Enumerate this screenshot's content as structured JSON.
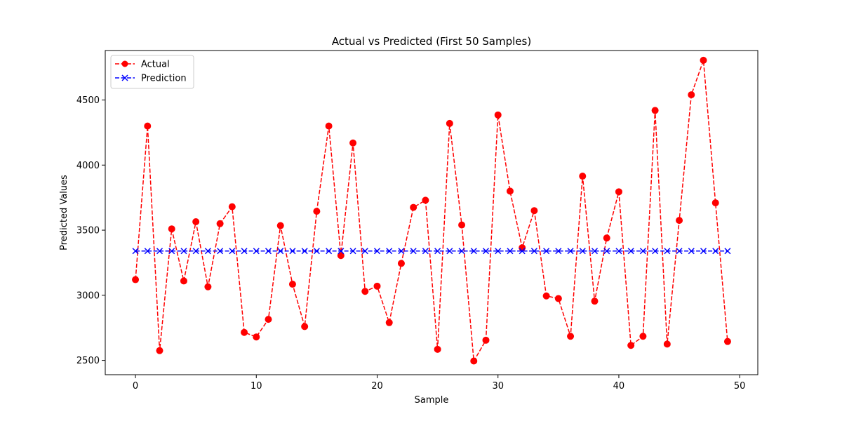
{
  "chart_data": {
    "type": "line",
    "title": "Actual vs Predicted (First 50 Samples)",
    "xlabel": "Sample",
    "ylabel": "Predicted Values",
    "xlim": [
      -2.5,
      51.5
    ],
    "ylim": [
      2390,
      4880
    ],
    "xticks": [
      0,
      10,
      20,
      30,
      40,
      50
    ],
    "xtick_labels": [
      "0",
      "10",
      "20",
      "30",
      "40",
      "50"
    ],
    "yticks": [
      2500,
      3000,
      3500,
      4000,
      4500
    ],
    "ytick_labels": [
      "2500",
      "3000",
      "3500",
      "4000",
      "4500"
    ],
    "grid": false,
    "legend_position": "top-left",
    "x": [
      0,
      1,
      2,
      3,
      4,
      5,
      6,
      7,
      8,
      9,
      10,
      11,
      12,
      13,
      14,
      15,
      16,
      17,
      18,
      19,
      20,
      21,
      22,
      23,
      24,
      25,
      26,
      27,
      28,
      29,
      30,
      31,
      32,
      33,
      34,
      35,
      36,
      37,
      38,
      39,
      40,
      41,
      42,
      43,
      44,
      45,
      46,
      47,
      48,
      49
    ],
    "series": [
      {
        "name": "Actual",
        "color": "#ff0000",
        "marker": "circle",
        "values": [
          3120,
          4300,
          2575,
          3510,
          3110,
          3565,
          3065,
          3550,
          3680,
          2715,
          2680,
          2815,
          3535,
          3085,
          2760,
          3645,
          4300,
          3305,
          4170,
          3030,
          3070,
          2790,
          3245,
          3675,
          3730,
          2585,
          4320,
          3540,
          2495,
          2655,
          4385,
          3800,
          3365,
          3650,
          2995,
          2975,
          2685,
          3915,
          2955,
          3440,
          3795,
          2615,
          2685,
          4420,
          2625,
          3575,
          4540,
          4805,
          3710,
          2645
        ]
      },
      {
        "name": "Prediction",
        "color": "#0000ff",
        "marker": "x",
        "values": [
          3340,
          3340,
          3340,
          3340,
          3340,
          3340,
          3340,
          3340,
          3340,
          3340,
          3340,
          3340,
          3340,
          3340,
          3340,
          3340,
          3340,
          3340,
          3340,
          3340,
          3340,
          3340,
          3340,
          3340,
          3340,
          3340,
          3340,
          3340,
          3340,
          3340,
          3340,
          3340,
          3340,
          3340,
          3340,
          3340,
          3340,
          3340,
          3340,
          3340,
          3340,
          3340,
          3340,
          3340,
          3340,
          3340,
          3340,
          3340,
          3340,
          3340
        ]
      }
    ]
  }
}
